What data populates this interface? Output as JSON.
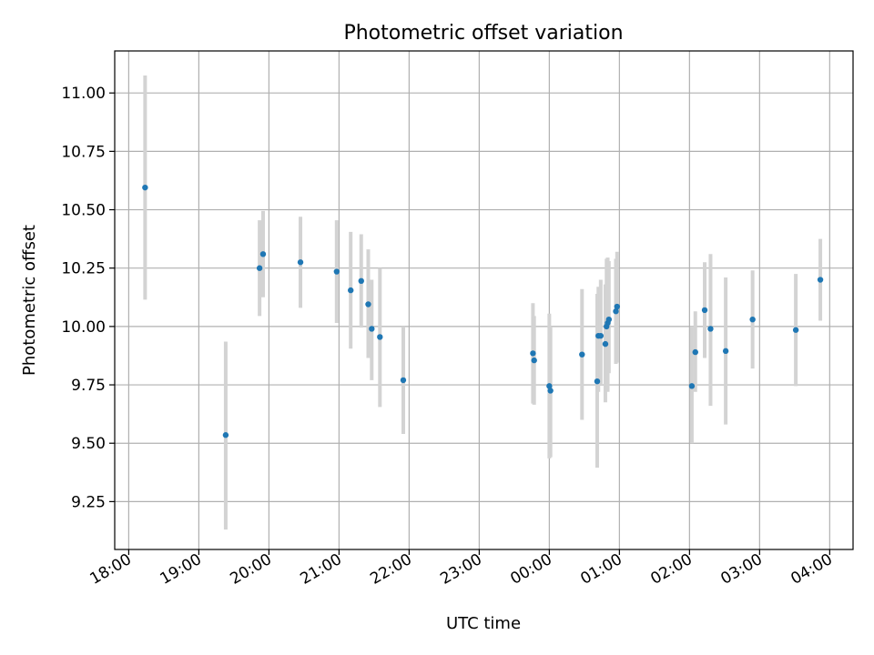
{
  "chart_data": {
    "type": "scatter",
    "title": "Photometric offset variation",
    "xlabel": "UTC time",
    "ylabel": "Photometric offset",
    "xlim": [
      "17:48",
      "04:20"
    ],
    "ylim": [
      9.045,
      11.18
    ],
    "x_ticks": [
      "18:00",
      "19:00",
      "20:00",
      "21:00",
      "22:00",
      "23:00",
      "00:00",
      "01:00",
      "02:00",
      "03:00",
      "04:00"
    ],
    "y_ticks": [
      "9.25",
      "9.50",
      "9.75",
      "10.00",
      "10.25",
      "10.50",
      "10.75",
      "11.00"
    ],
    "grid": true,
    "point_color": "#1f77b4",
    "errorbar_color": "#d3d3d3",
    "points": [
      {
        "t": "18:14",
        "y": 10.595,
        "lo": 10.115,
        "hi": 11.075
      },
      {
        "t": "19:23",
        "y": 9.535,
        "lo": 9.13,
        "hi": 9.935
      },
      {
        "t": "19:52",
        "y": 10.25,
        "lo": 10.045,
        "hi": 10.455
      },
      {
        "t": "19:55",
        "y": 10.31,
        "lo": 10.125,
        "hi": 10.495
      },
      {
        "t": "20:27",
        "y": 10.275,
        "lo": 10.08,
        "hi": 10.47
      },
      {
        "t": "20:58",
        "y": 10.235,
        "lo": 10.015,
        "hi": 10.455
      },
      {
        "t": "21:10",
        "y": 10.155,
        "lo": 9.905,
        "hi": 10.405
      },
      {
        "t": "21:19",
        "y": 10.195,
        "lo": 9.995,
        "hi": 10.395
      },
      {
        "t": "21:25",
        "y": 10.095,
        "lo": 9.865,
        "hi": 10.33
      },
      {
        "t": "21:28",
        "y": 9.99,
        "lo": 9.77,
        "hi": 10.2
      },
      {
        "t": "21:35",
        "y": 9.955,
        "lo": 9.655,
        "hi": 10.25
      },
      {
        "t": "21:55",
        "y": 9.77,
        "lo": 9.54,
        "hi": 10.0
      },
      {
        "t": "23:46",
        "y": 9.885,
        "lo": 9.67,
        "hi": 10.1
      },
      {
        "t": "23:47",
        "y": 9.855,
        "lo": 9.665,
        "hi": 10.045
      },
      {
        "t": "00:00",
        "y": 9.745,
        "lo": 9.435,
        "hi": 10.055
      },
      {
        "t": "00:01",
        "y": 9.725,
        "lo": 9.44,
        "hi": 10.0
      },
      {
        "t": "00:28",
        "y": 9.88,
        "lo": 9.6,
        "hi": 10.16
      },
      {
        "t": "00:41",
        "y": 9.765,
        "lo": 9.395,
        "hi": 10.14
      },
      {
        "t": "00:42",
        "y": 9.96,
        "lo": 9.72,
        "hi": 10.17
      },
      {
        "t": "00:44",
        "y": 9.96,
        "lo": 9.75,
        "hi": 10.2
      },
      {
        "t": "00:48",
        "y": 9.925,
        "lo": 9.675,
        "hi": 10.18
      },
      {
        "t": "00:49",
        "y": 10.0,
        "lo": 9.75,
        "hi": 10.29
      },
      {
        "t": "00:50",
        "y": 10.015,
        "lo": 9.72,
        "hi": 10.295
      },
      {
        "t": "00:51",
        "y": 10.03,
        "lo": 9.8,
        "hi": 10.28
      },
      {
        "t": "00:57",
        "y": 10.065,
        "lo": 9.84,
        "hi": 10.29
      },
      {
        "t": "00:58",
        "y": 10.085,
        "lo": 9.845,
        "hi": 10.32
      },
      {
        "t": "02:02",
        "y": 9.745,
        "lo": 9.5,
        "hi": 10.0
      },
      {
        "t": "02:05",
        "y": 9.89,
        "lo": 9.72,
        "hi": 10.065
      },
      {
        "t": "02:13",
        "y": 10.07,
        "lo": 9.865,
        "hi": 10.275
      },
      {
        "t": "02:18",
        "y": 9.99,
        "lo": 9.66,
        "hi": 10.31
      },
      {
        "t": "02:31",
        "y": 9.895,
        "lo": 9.58,
        "hi": 10.21
      },
      {
        "t": "02:54",
        "y": 10.03,
        "lo": 9.82,
        "hi": 10.24
      },
      {
        "t": "03:31",
        "y": 9.985,
        "lo": 9.745,
        "hi": 10.225
      },
      {
        "t": "03:52",
        "y": 10.2,
        "lo": 10.025,
        "hi": 10.375
      }
    ]
  }
}
